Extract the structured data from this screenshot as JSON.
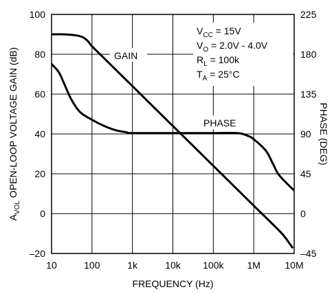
{
  "chart_data": {
    "type": "line",
    "xlabel": "FREQUENCY (Hz)",
    "ylabel_left": "OPEN-LOOP VOLTAGE GAIN (dB)",
    "ylabel_left_prefix": "A",
    "ylabel_left_prefix_sub": "VOL",
    "ylabel_right": "PHASE (DEG)",
    "x_scale": "log",
    "xlim": [
      10,
      10000000
    ],
    "ylim_left": [
      -20,
      100
    ],
    "ylim_right": [
      -45,
      225
    ],
    "grid": true,
    "x_ticks": [
      {
        "value": 10,
        "label": "10"
      },
      {
        "value": 100,
        "label": "100"
      },
      {
        "value": 1000,
        "label": "1k"
      },
      {
        "value": 10000,
        "label": "10k"
      },
      {
        "value": 100000,
        "label": "100k"
      },
      {
        "value": 1000000,
        "label": "1M"
      },
      {
        "value": 10000000,
        "label": "10M"
      }
    ],
    "y_ticks_left": [
      {
        "value": 100,
        "label": "100"
      },
      {
        "value": 80,
        "label": "80"
      },
      {
        "value": 60,
        "label": "60"
      },
      {
        "value": 40,
        "label": "40"
      },
      {
        "value": 20,
        "label": "20"
      },
      {
        "value": 0,
        "label": "0"
      },
      {
        "value": -20,
        "label": "–20"
      }
    ],
    "y_ticks_right": [
      {
        "value": 225,
        "label": "225"
      },
      {
        "value": 180,
        "label": "180"
      },
      {
        "value": 135,
        "label": "135"
      },
      {
        "value": 90,
        "label": "90"
      },
      {
        "value": 45,
        "label": "45"
      },
      {
        "value": 0,
        "label": "0"
      },
      {
        "value": -45,
        "label": "–45"
      }
    ],
    "series": [
      {
        "name": "GAIN",
        "axis": "left",
        "points": [
          [
            10,
            90
          ],
          [
            20,
            90
          ],
          [
            40,
            89.5
          ],
          [
            60,
            88.5
          ],
          [
            80,
            86.5
          ],
          [
            100,
            84
          ],
          [
            200,
            78
          ],
          [
            1000,
            64
          ],
          [
            10000,
            44
          ],
          [
            100000,
            24
          ],
          [
            1000000,
            4
          ],
          [
            4000000,
            -8
          ],
          [
            6000000,
            -12
          ],
          [
            9000000,
            -17
          ]
        ]
      },
      {
        "name": "PHASE",
        "axis": "right",
        "points": [
          [
            10,
            169
          ],
          [
            15,
            160
          ],
          [
            20,
            148
          ],
          [
            30,
            130
          ],
          [
            50,
            115
          ],
          [
            100,
            106
          ],
          [
            200,
            99
          ],
          [
            400,
            94
          ],
          [
            700,
            92
          ],
          [
            1000,
            91
          ],
          [
            10000,
            91
          ],
          [
            100000,
            91
          ],
          [
            400000,
            91
          ],
          [
            700000,
            88
          ],
          [
            1000000,
            84
          ],
          [
            2000000,
            71
          ],
          [
            3000000,
            56
          ],
          [
            4000000,
            45
          ],
          [
            6000000,
            36
          ],
          [
            10000000,
            26
          ]
        ]
      }
    ],
    "annotations": {
      "gain_label": "GAIN",
      "phase_label": "PHASE",
      "conditions": [
        {
          "main": "V",
          "sub": "CC",
          "rest": " = 15V"
        },
        {
          "main": "V",
          "sub": "O",
          "rest": " = 2.0V - 4.0V"
        },
        {
          "main": "R",
          "sub": "L",
          "rest": " = 100k"
        },
        {
          "main": "T",
          "sub": "A",
          "rest": " = 25°C"
        }
      ]
    }
  }
}
